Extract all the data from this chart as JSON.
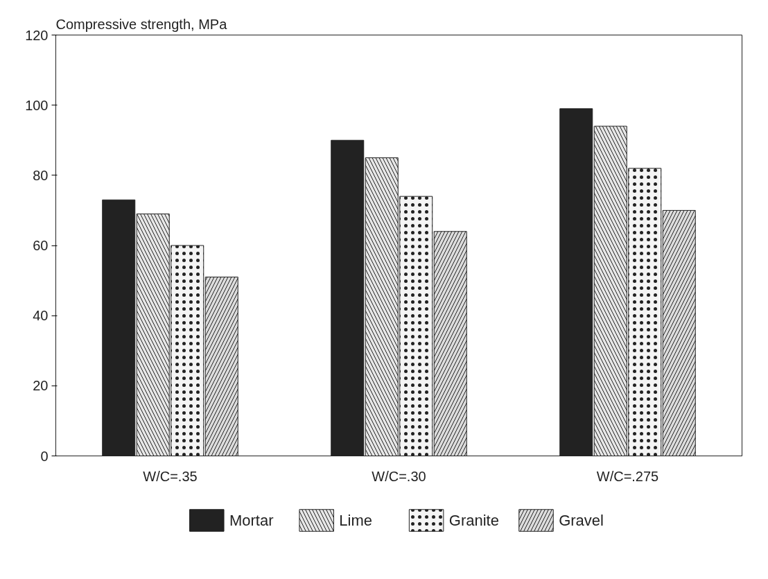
{
  "chart_data": {
    "type": "bar",
    "ylabel": "Compressive strength, MPa",
    "categories": [
      "W/C=.35",
      "W/C=.30",
      "W/C=.275"
    ],
    "series": [
      {
        "name": "Mortar",
        "color": "#222222",
        "values": [
          73,
          90,
          99
        ]
      },
      {
        "name": "Lime",
        "color": "#e6e6e6",
        "values": [
          69,
          85,
          94
        ]
      },
      {
        "name": "Granite",
        "color": "#f4f4f4",
        "values": [
          60,
          74,
          82
        ]
      },
      {
        "name": "Gravel",
        "color": "#dcdcdc",
        "values": [
          51,
          64,
          70
        ]
      }
    ],
    "ylim": [
      0,
      120
    ],
    "yticks": [
      0,
      20,
      40,
      60,
      80,
      100,
      120
    ],
    "grid": false,
    "legend": "bottom"
  }
}
